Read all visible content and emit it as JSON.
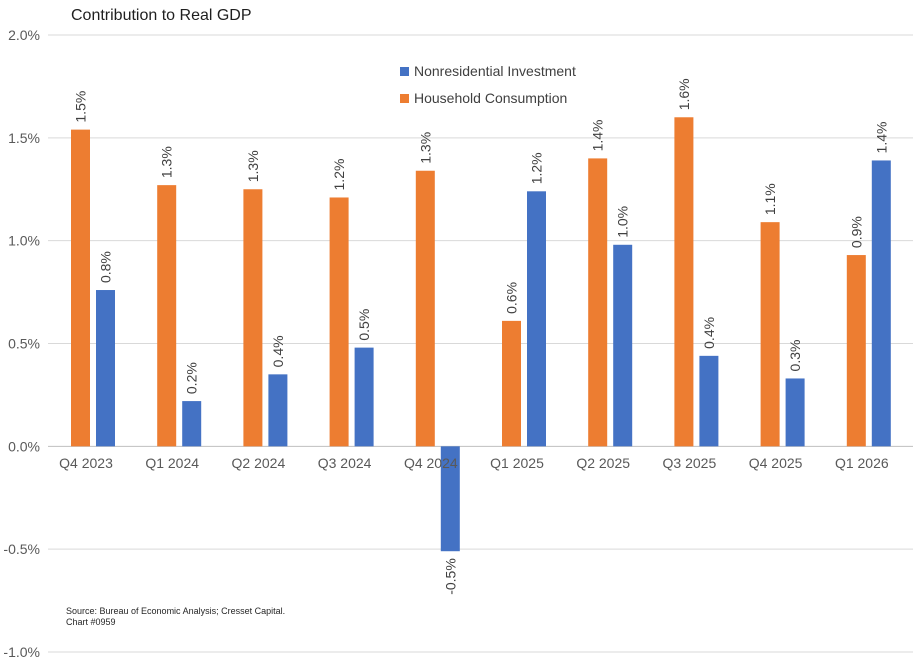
{
  "chart_data": {
    "type": "bar",
    "title": "Contribution to Real GDP",
    "source_line1": "Source: Bureau of Economic Analysis; Cresset Capital.",
    "source_line2": "Chart #0959",
    "categories": [
      "Q4 2023",
      "Q1 2024",
      "Q2 2024",
      "Q3 2024",
      "Q4 2024",
      "Q1 2025",
      "Q2 2025",
      "Q3 2025",
      "Q4 2025",
      "Q1 2026"
    ],
    "series": [
      {
        "name": "Household Consumption",
        "color": "#ED7D31",
        "values": [
          1.54,
          1.27,
          1.25,
          1.21,
          1.34,
          0.61,
          1.4,
          1.6,
          1.09,
          0.93
        ],
        "labels": [
          "1.5%",
          "1.3%",
          "1.3%",
          "1.2%",
          "1.3%",
          "0.6%",
          "1.4%",
          "1.6%",
          "1.1%",
          "0.9%"
        ]
      },
      {
        "name": "Nonresidential Investment",
        "color": "#4472C4",
        "values": [
          0.76,
          0.22,
          0.35,
          0.48,
          -0.51,
          1.24,
          0.98,
          0.44,
          0.33,
          1.39
        ],
        "labels": [
          "0.8%",
          "0.2%",
          "0.4%",
          "0.5%",
          "-0.5%",
          "1.2%",
          "1.0%",
          "0.4%",
          "0.3%",
          "1.4%"
        ]
      }
    ],
    "legend_order": [
      "Nonresidential Investment",
      "Household Consumption"
    ],
    "legend_position": "top-center",
    "ylim": [
      -1.0,
      2.0
    ],
    "yticks": [
      2.0,
      1.5,
      1.0,
      0.5,
      0.0,
      -0.5,
      -1.0
    ],
    "ytick_labels": [
      "2.0%",
      "1.5%",
      "1.0%",
      "0.5%",
      "0.0%",
      "-0.5%",
      "-1.0%"
    ],
    "grid": true,
    "gridline_color": "#D9D9D9"
  }
}
